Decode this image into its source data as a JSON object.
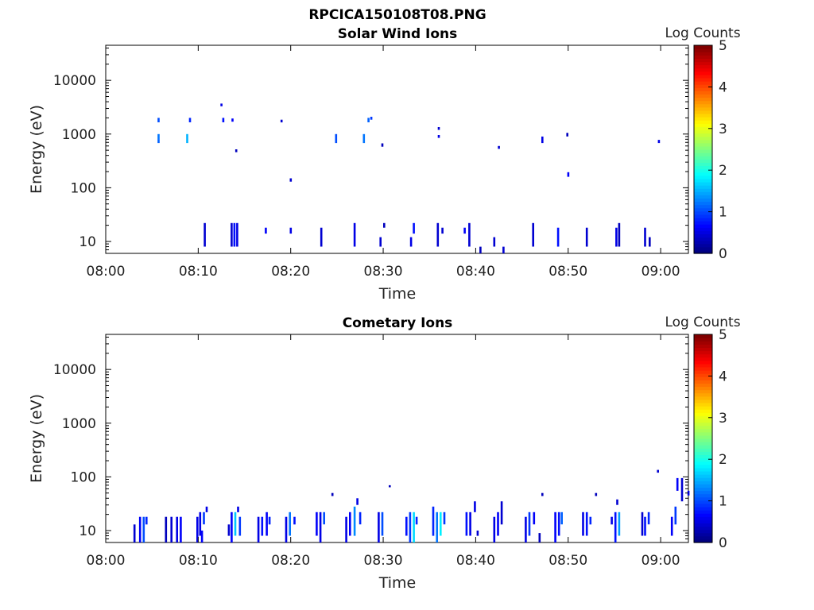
{
  "figure_title": "RPCICA150108T08.PNG",
  "colorbar": {
    "label": "Log Counts",
    "ticks": [
      "0",
      "1",
      "2",
      "3",
      "4",
      "5"
    ],
    "range": [
      0,
      5
    ],
    "colormap": "jet"
  },
  "chart_data": [
    {
      "type": "heatmap",
      "title": "Solar Wind Ions",
      "xlabel": "Time",
      "ylabel": "Energy (eV)",
      "yscale": "log",
      "ylim": [
        6,
        45000
      ],
      "x_ticks": [
        "08:00",
        "08:10",
        "08:20",
        "08:30",
        "08:40",
        "08:50",
        "09:00"
      ],
      "y_ticks": [
        "10",
        "100",
        "1000",
        "10000"
      ],
      "xlim_minutes": [
        0,
        63
      ],
      "cells_note": "[minute, energy_low, energy_high, log_count]",
      "cells": [
        [
          5.6,
          1650,
          2000,
          1.0
        ],
        [
          5.6,
          800,
          1000,
          1.2
        ],
        [
          5.6,
          680,
          800,
          1.1
        ],
        [
          8.7,
          680,
          1000,
          1.5
        ],
        [
          9.0,
          1650,
          2000,
          0.8
        ],
        [
          12.4,
          3300,
          3700,
          0.5
        ],
        [
          12.6,
          1650,
          2000,
          0.7
        ],
        [
          13.6,
          1700,
          1950,
          0.6
        ],
        [
          14.0,
          460,
          520,
          0.3
        ],
        [
          18.9,
          1650,
          1850,
          0.4
        ],
        [
          19.9,
          130,
          150,
          0.4
        ],
        [
          24.8,
          680,
          1000,
          1.0
        ],
        [
          27.8,
          680,
          1000,
          1.2
        ],
        [
          28.3,
          1650,
          2000,
          1.1
        ],
        [
          28.6,
          1850,
          2100,
          0.9
        ],
        [
          29.8,
          580,
          670,
          0.3
        ],
        [
          35.9,
          1200,
          1350,
          0.4
        ],
        [
          35.9,
          850,
          960,
          0.5
        ],
        [
          42.4,
          530,
          600,
          0.4
        ],
        [
          47.1,
          680,
          900,
          0.5
        ],
        [
          49.8,
          900,
          1050,
          0.3
        ],
        [
          49.9,
          160,
          195,
          0.6
        ],
        [
          59.7,
          680,
          780,
          0.5
        ],
        [
          10.6,
          8,
          22,
          0.4
        ],
        [
          13.5,
          8,
          22,
          0.4
        ],
        [
          13.8,
          8,
          22,
          0.7
        ],
        [
          14.1,
          8,
          22,
          0.5
        ],
        [
          17.2,
          14,
          18,
          0.6
        ],
        [
          19.9,
          14,
          18,
          0.5
        ],
        [
          23.2,
          8,
          18,
          0.4
        ],
        [
          26.8,
          8,
          22,
          0.5
        ],
        [
          29.6,
          8,
          12,
          0.4
        ],
        [
          30.0,
          18,
          22,
          0.3
        ],
        [
          32.9,
          8,
          12,
          0.5
        ],
        [
          33.2,
          14,
          22,
          0.7
        ],
        [
          35.8,
          8,
          22,
          0.4
        ],
        [
          36.3,
          14,
          18,
          0.4
        ],
        [
          38.7,
          14,
          18,
          0.6
        ],
        [
          39.2,
          8,
          22,
          0.4
        ],
        [
          40.4,
          6,
          8,
          0.3
        ],
        [
          41.9,
          8,
          12,
          0.4
        ],
        [
          42.9,
          6,
          8,
          0.4
        ],
        [
          46.1,
          8,
          22,
          0.4
        ],
        [
          48.8,
          8,
          18,
          0.7
        ],
        [
          51.9,
          8,
          18,
          0.4
        ],
        [
          55.1,
          8,
          18,
          0.5
        ],
        [
          55.4,
          8,
          22,
          0.3
        ],
        [
          58.2,
          8,
          18,
          0.4
        ],
        [
          58.7,
          8,
          12,
          0.3
        ]
      ]
    },
    {
      "type": "heatmap",
      "title": "Cometary Ions",
      "xlabel": "Time",
      "ylabel": "Energy (eV)",
      "yscale": "log",
      "ylim": [
        6,
        45000
      ],
      "x_ticks": [
        "08:00",
        "08:10",
        "08:20",
        "08:30",
        "08:40",
        "08:50",
        "09:00"
      ],
      "y_ticks": [
        "10",
        "100",
        "1000",
        "10000"
      ],
      "xlim_minutes": [
        0,
        63
      ],
      "cells_note": "[minute, energy_low, energy_high, log_count]",
      "cells": [
        [
          3.0,
          6,
          13,
          0.4
        ],
        [
          3.6,
          6,
          18,
          0.6
        ],
        [
          4.0,
          6,
          18,
          1.0
        ],
        [
          4.3,
          13,
          18,
          0.8
        ],
        [
          6.4,
          6,
          18,
          0.3
        ],
        [
          7.0,
          6,
          18,
          0.4
        ],
        [
          7.6,
          6,
          18,
          0.5
        ],
        [
          8.0,
          6,
          18,
          0.6
        ],
        [
          9.8,
          6,
          18,
          0.5
        ],
        [
          10.1,
          8,
          22,
          0.5
        ],
        [
          10.5,
          13,
          22,
          0.9
        ],
        [
          10.8,
          22,
          28,
          0.5
        ],
        [
          10.3,
          6,
          10,
          0.6
        ],
        [
          13.2,
          8,
          13,
          0.4
        ],
        [
          13.5,
          6,
          22,
          0.6
        ],
        [
          13.9,
          8,
          22,
          1.6
        ],
        [
          14.2,
          22,
          28,
          0.5
        ],
        [
          14.4,
          8,
          18,
          0.9
        ],
        [
          16.4,
          6,
          18,
          0.5
        ],
        [
          16.8,
          8,
          18,
          0.7
        ],
        [
          17.3,
          8,
          22,
          0.6
        ],
        [
          17.6,
          13,
          18,
          0.8
        ],
        [
          19.4,
          6,
          18,
          0.5
        ],
        [
          19.8,
          8,
          22,
          1.2
        ],
        [
          20.3,
          13,
          18,
          0.7
        ],
        [
          22.7,
          8,
          22,
          0.6
        ],
        [
          23.1,
          6,
          22,
          0.5
        ],
        [
          23.5,
          13,
          22,
          1.0
        ],
        [
          25.9,
          6,
          18,
          0.5
        ],
        [
          26.3,
          8,
          22,
          0.6
        ],
        [
          26.8,
          8,
          28,
          1.3
        ],
        [
          27.1,
          30,
          40,
          0.5
        ],
        [
          27.4,
          13,
          22,
          0.8
        ],
        [
          29.4,
          6,
          22,
          0.5
        ],
        [
          29.8,
          8,
          22,
          1.0
        ],
        [
          32.4,
          8,
          18,
          0.7
        ],
        [
          32.8,
          6,
          22,
          0.9
        ],
        [
          33.2,
          6,
          22,
          1.7
        ],
        [
          33.5,
          13,
          18,
          0.8
        ],
        [
          35.3,
          8,
          28,
          0.8
        ],
        [
          35.7,
          6,
          22,
          1.2
        ],
        [
          36.1,
          8,
          22,
          1.8
        ],
        [
          36.5,
          13,
          22,
          0.9
        ],
        [
          38.9,
          8,
          22,
          0.7
        ],
        [
          39.3,
          8,
          22,
          0.5
        ],
        [
          39.8,
          22,
          35,
          0.5
        ],
        [
          41.9,
          6,
          18,
          0.5
        ],
        [
          42.3,
          8,
          22,
          0.6
        ],
        [
          42.7,
          13,
          35,
          0.4
        ],
        [
          45.3,
          6,
          18,
          0.5
        ],
        [
          45.7,
          8,
          22,
          0.9
        ],
        [
          46.2,
          13,
          22,
          0.6
        ],
        [
          48.5,
          6,
          22,
          0.6
        ],
        [
          48.9,
          8,
          22,
          0.7
        ],
        [
          49.2,
          13,
          22,
          1.1
        ],
        [
          51.5,
          8,
          22,
          0.5
        ],
        [
          51.9,
          8,
          22,
          0.7
        ],
        [
          52.3,
          13,
          18,
          0.8
        ],
        [
          54.6,
          13,
          18,
          0.5
        ],
        [
          55.0,
          6,
          22,
          0.7
        ],
        [
          55.4,
          8,
          22,
          1.4
        ],
        [
          55.2,
          30,
          38,
          0.4
        ],
        [
          57.9,
          8,
          22,
          0.4
        ],
        [
          58.2,
          8,
          18,
          0.7
        ],
        [
          58.6,
          13,
          22,
          0.8
        ],
        [
          61.1,
          8,
          18,
          0.6
        ],
        [
          61.5,
          13,
          28,
          0.9
        ],
        [
          61.7,
          55,
          95,
          0.6
        ],
        [
          62.2,
          35,
          95,
          0.4
        ],
        [
          24.4,
          44,
          50,
          0.3
        ],
        [
          30.6,
          64,
          70,
          0.3
        ],
        [
          47.1,
          44,
          50,
          0.3
        ],
        [
          52.9,
          44,
          50,
          0.3
        ],
        [
          59.6,
          120,
          135,
          0.4
        ],
        [
          40.1,
          8,
          10,
          0.4
        ],
        [
          46.8,
          6,
          9,
          0.3
        ],
        [
          62.9,
          45,
          55,
          0.5
        ]
      ]
    }
  ]
}
